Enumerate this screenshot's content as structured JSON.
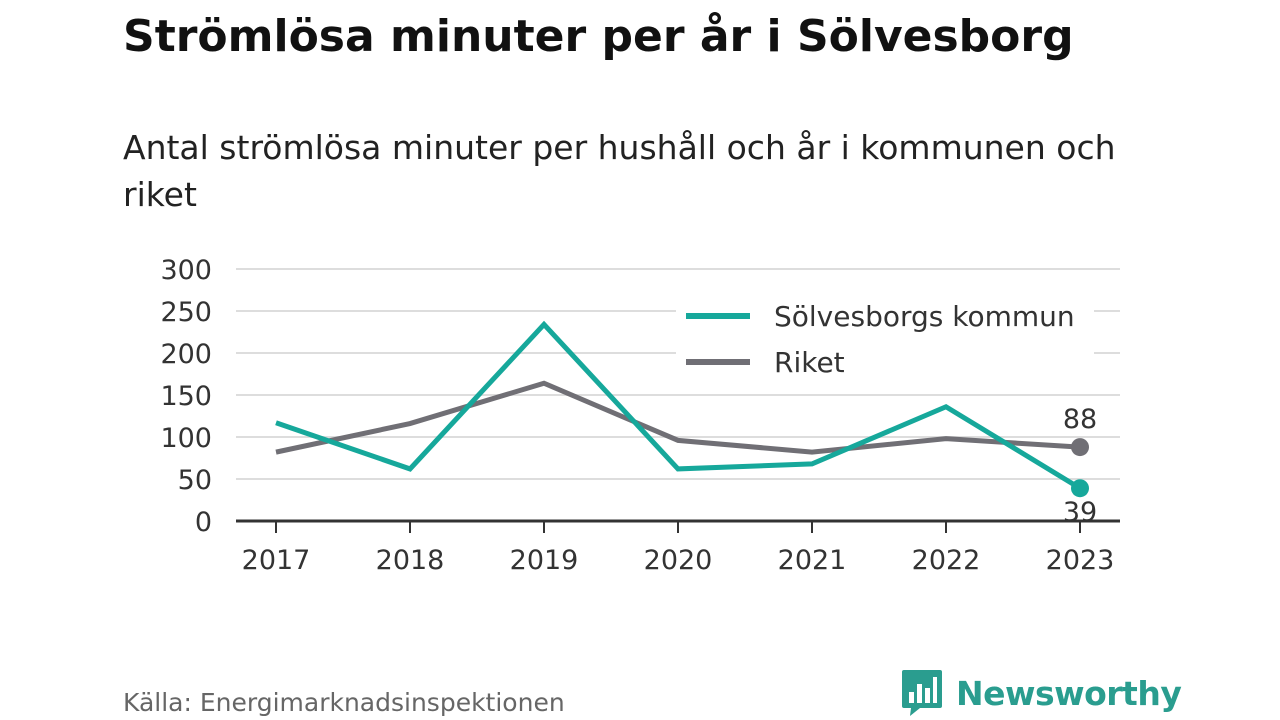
{
  "header": {
    "title": "Strömlösa minuter per år i Sölvesborg",
    "subtitle": "Antal strömlösa minuter per hushåll och år i kommunen och riket"
  },
  "footer": {
    "source": "Källa: Energimarknadsinspektionen",
    "brand": "Newsworthy",
    "brand_icon": "bar-chart-speech-bubble-icon"
  },
  "colors": {
    "kommun": "#16a89b",
    "riket": "#706f75",
    "grid": "#dddddd",
    "axis": "#333333",
    "brand": "#2a9d8f"
  },
  "chart_data": {
    "type": "line",
    "categories": [
      "2017",
      "2018",
      "2019",
      "2020",
      "2021",
      "2022",
      "2023"
    ],
    "ylim": [
      0,
      300
    ],
    "yticks": [
      0,
      50,
      100,
      150,
      200,
      250,
      300
    ],
    "grid": true,
    "legend_position": "top-right",
    "series": [
      {
        "name": "Sölvesborgs kommun",
        "color": "#16a89b",
        "values": [
          117,
          62,
          234,
          62,
          68,
          136,
          39
        ],
        "end_label": "39"
      },
      {
        "name": "Riket",
        "color": "#706f75",
        "values": [
          82,
          116,
          164,
          96,
          82,
          98,
          88
        ],
        "end_label": "88"
      }
    ]
  }
}
